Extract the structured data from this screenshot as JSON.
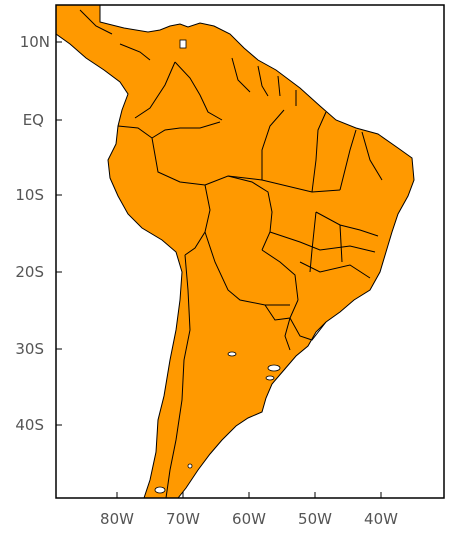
{
  "map": {
    "lat_labels": [
      "10N",
      "EQ",
      "10S",
      "20S",
      "30S",
      "40S"
    ],
    "lon_labels": [
      "80W",
      "70W",
      "60W",
      "50W",
      "40W"
    ],
    "colors": {
      "ocean": "#ffffff",
      "level_1": "#ffff00",
      "level_2": "#ffd000",
      "level_3": "#ff9900",
      "level_4": "#ff6600",
      "level_5": "#ee2200",
      "level_6": "#aa0033",
      "border": "#000000"
    }
  }
}
